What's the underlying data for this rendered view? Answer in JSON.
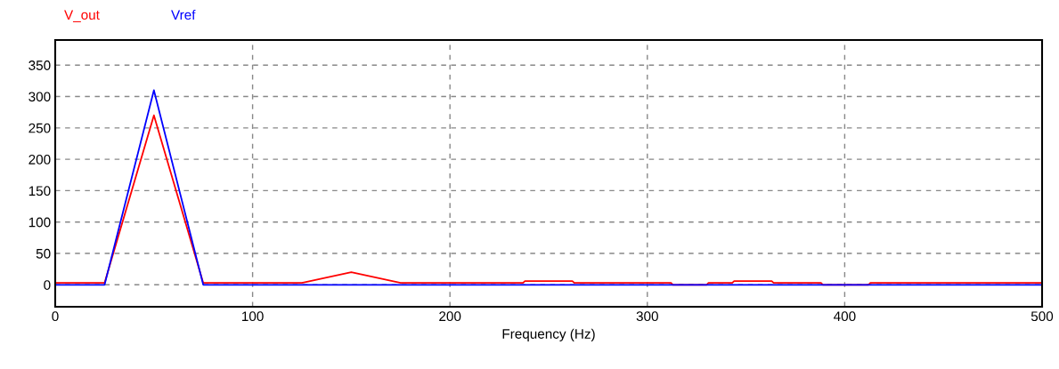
{
  "chart_data": {
    "type": "line",
    "xlabel": "Frequency (Hz)",
    "xlim": [
      0,
      500
    ],
    "xticks": [
      0,
      100,
      200,
      300,
      400,
      500
    ],
    "ylim": [
      -35,
      390
    ],
    "yticks": [
      0,
      50,
      100,
      150,
      200,
      250,
      300,
      350
    ],
    "grid": true,
    "legend": "top left",
    "marker": "none",
    "line_style": "solid",
    "series": [
      {
        "name": "V_out",
        "color": "#ff0000",
        "x": [
          0,
          25,
          50,
          75,
          125,
          150,
          175,
          237,
          238,
          262,
          263,
          312,
          313,
          330,
          331,
          343,
          344,
          363,
          364,
          388,
          389,
          412,
          413,
          500
        ],
        "values": [
          3,
          3,
          270,
          3,
          3,
          20,
          3,
          3,
          6,
          6,
          3,
          3,
          0,
          0,
          3,
          3,
          6,
          6,
          3,
          3,
          0,
          0,
          3,
          3
        ]
      },
      {
        "name": "Vref",
        "color": "#0000ff",
        "x": [
          0,
          25,
          50,
          75,
          500
        ],
        "values": [
          0,
          0,
          310,
          0,
          0
        ]
      }
    ]
  }
}
